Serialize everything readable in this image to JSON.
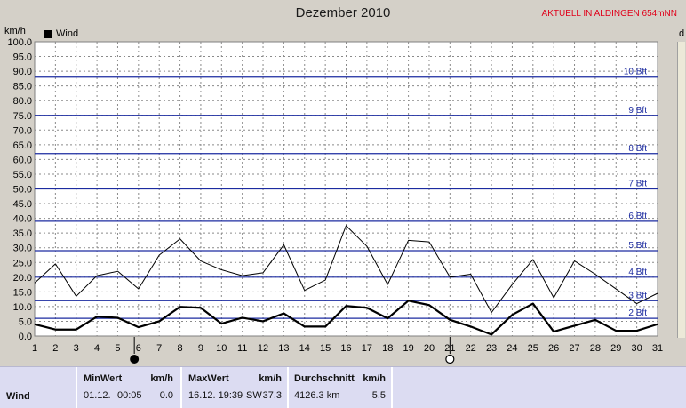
{
  "header": {
    "title": "Dezember 2010",
    "badge": "AKTUELL IN ALDINGEN 654mNN",
    "unit": "km/h",
    "legend_label": "Wind",
    "right_axis_letter": "d"
  },
  "chart_data": {
    "type": "line",
    "title": "Dezember 2010",
    "ylabel": "km/h",
    "ylim": [
      0,
      100
    ],
    "x": [
      1,
      2,
      3,
      4,
      5,
      6,
      7,
      8,
      9,
      10,
      11,
      12,
      13,
      14,
      15,
      16,
      17,
      18,
      19,
      20,
      21,
      22,
      23,
      24,
      25,
      26,
      27,
      28,
      29,
      30,
      31
    ],
    "y_ticks": [
      "0.0",
      "5.0",
      "10.0",
      "15.0",
      "20.0",
      "25.0",
      "30.0",
      "35.0",
      "40.0",
      "45.0",
      "50.0",
      "55.0",
      "60.0",
      "65.0",
      "70.0",
      "75.0",
      "80.0",
      "85.0",
      "90.0",
      "95.0",
      "100.0"
    ],
    "x_ticks": [
      "1",
      "2",
      "3",
      "4",
      "5",
      "6",
      "7",
      "8",
      "9",
      "10",
      "11",
      "12",
      "13",
      "14",
      "15",
      "16",
      "17",
      "18",
      "19",
      "20",
      "21",
      "22",
      "23",
      "24",
      "25",
      "26",
      "27",
      "28",
      "29",
      "30",
      "31"
    ],
    "series": [
      {
        "name": "Wind",
        "role": "mean",
        "color": "#000000",
        "values": [
          4.0,
          2.2,
          2.2,
          6.6,
          6.2,
          3.0,
          5.0,
          9.9,
          9.6,
          4.2,
          6.2,
          5.0,
          7.7,
          3.2,
          3.2,
          10.2,
          9.6,
          6.0,
          12.0,
          10.5,
          5.5,
          3.2,
          0.5,
          7.2,
          11.0,
          1.5,
          3.5,
          5.5,
          1.8,
          1.8,
          4.0
        ]
      },
      {
        "role": "gust",
        "color": "#000000",
        "values": [
          18.0,
          24.5,
          13.5,
          20.5,
          22.0,
          16.0,
          27.5,
          33.0,
          25.5,
          22.5,
          20.5,
          21.5,
          31.0,
          15.5,
          19.0,
          37.5,
          30.5,
          17.5,
          32.5,
          32.0,
          20.0,
          21.0,
          8.0,
          17.5,
          26.0,
          13.0,
          25.5,
          21.0,
          16.0,
          11.0,
          14.5
        ]
      }
    ],
    "beaufort": [
      {
        "label": "2 Bft",
        "kmh": 6
      },
      {
        "label": "3 Bft",
        "kmh": 12
      },
      {
        "label": "4 Bft",
        "kmh": 20
      },
      {
        "label": "5 Bft",
        "kmh": 29
      },
      {
        "label": "6 Bft",
        "kmh": 39
      },
      {
        "label": "7 Bft",
        "kmh": 50
      },
      {
        "label": "8 Bft",
        "kmh": 62
      },
      {
        "label": "9 Bft",
        "kmh": 75
      },
      {
        "label": "10 Bft",
        "kmh": 88
      }
    ],
    "moon_phases": [
      {
        "day": 5.8,
        "phase": "new"
      },
      {
        "day": 21.0,
        "phase": "full"
      }
    ],
    "grid": true,
    "legend": "top-left"
  },
  "stats": {
    "row_label": "Wind",
    "min_header": "MinWert",
    "min_unit": "km/h",
    "min_date": "01.12.",
    "min_time": "00:05",
    "min_value": "0.0",
    "max_header": "MaxWert",
    "max_unit": "km/h",
    "max_datetime": "16.12. 19:39",
    "max_dir": "SW",
    "max_value": "37.3",
    "avg_header": "Durchschnitt",
    "avg_unit": "km/h",
    "avg_distance": "4126.3 km",
    "avg_value": "5.5"
  }
}
